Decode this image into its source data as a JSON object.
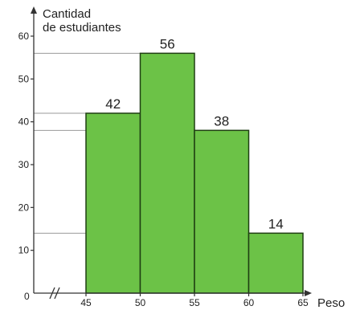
{
  "chart_data": {
    "type": "bar",
    "subtype": "histogram",
    "title": "",
    "ylabel_lines": [
      "Cantidad",
      "de estudiantes"
    ],
    "xlabel": "Peso",
    "bins": [
      {
        "from": 45,
        "to": 50,
        "value": 42
      },
      {
        "from": 50,
        "to": 55,
        "value": 56
      },
      {
        "from": 55,
        "to": 60,
        "value": 38
      },
      {
        "from": 60,
        "to": 65,
        "value": 14
      }
    ],
    "x_ticks": [
      "45",
      "50",
      "55",
      "60",
      "65"
    ],
    "y_ticks": [
      "10",
      "20",
      "30",
      "40",
      "50",
      "60"
    ],
    "origin_label": "0",
    "x_axis_break": true,
    "ylim": [
      0,
      60
    ],
    "xlim": [
      45,
      65
    ],
    "reference_lines": [
      56,
      42,
      38,
      14
    ],
    "grid": false,
    "legend": "none",
    "colors": {
      "bar_fill": "#6cc247",
      "bar_stroke": "#1f3f12",
      "axis": "#333333",
      "reference_line": "#9a9a9a"
    }
  }
}
